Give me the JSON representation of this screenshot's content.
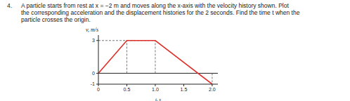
{
  "problem": {
    "number": "4.",
    "lines": [
      "A particle starts from rest at x = −2 m and moves along the x-axis with the velocity history shown. Plot",
      "the corresponding acceleration and the displacement histories for the 2 seconds. Find the time t when the",
      "particle crosses the origin."
    ]
  },
  "chart_data": {
    "type": "line",
    "x_label": "t, s",
    "y_label": "v, m/s",
    "x": [
      0,
      0.5,
      1,
      2
    ],
    "values": [
      0,
      3,
      3,
      -1
    ],
    "color": "#e0302a",
    "xlim": [
      0,
      2.1
    ],
    "xticks": [
      0,
      0.5,
      {
        "value": 1,
        "label": "1.0"
      },
      1.5,
      {
        "value": 2,
        "label": "2.0"
      }
    ],
    "ylim": [
      -1,
      3.5
    ],
    "yticks": [
      -1,
      0,
      3
    ],
    "grid": false
  }
}
